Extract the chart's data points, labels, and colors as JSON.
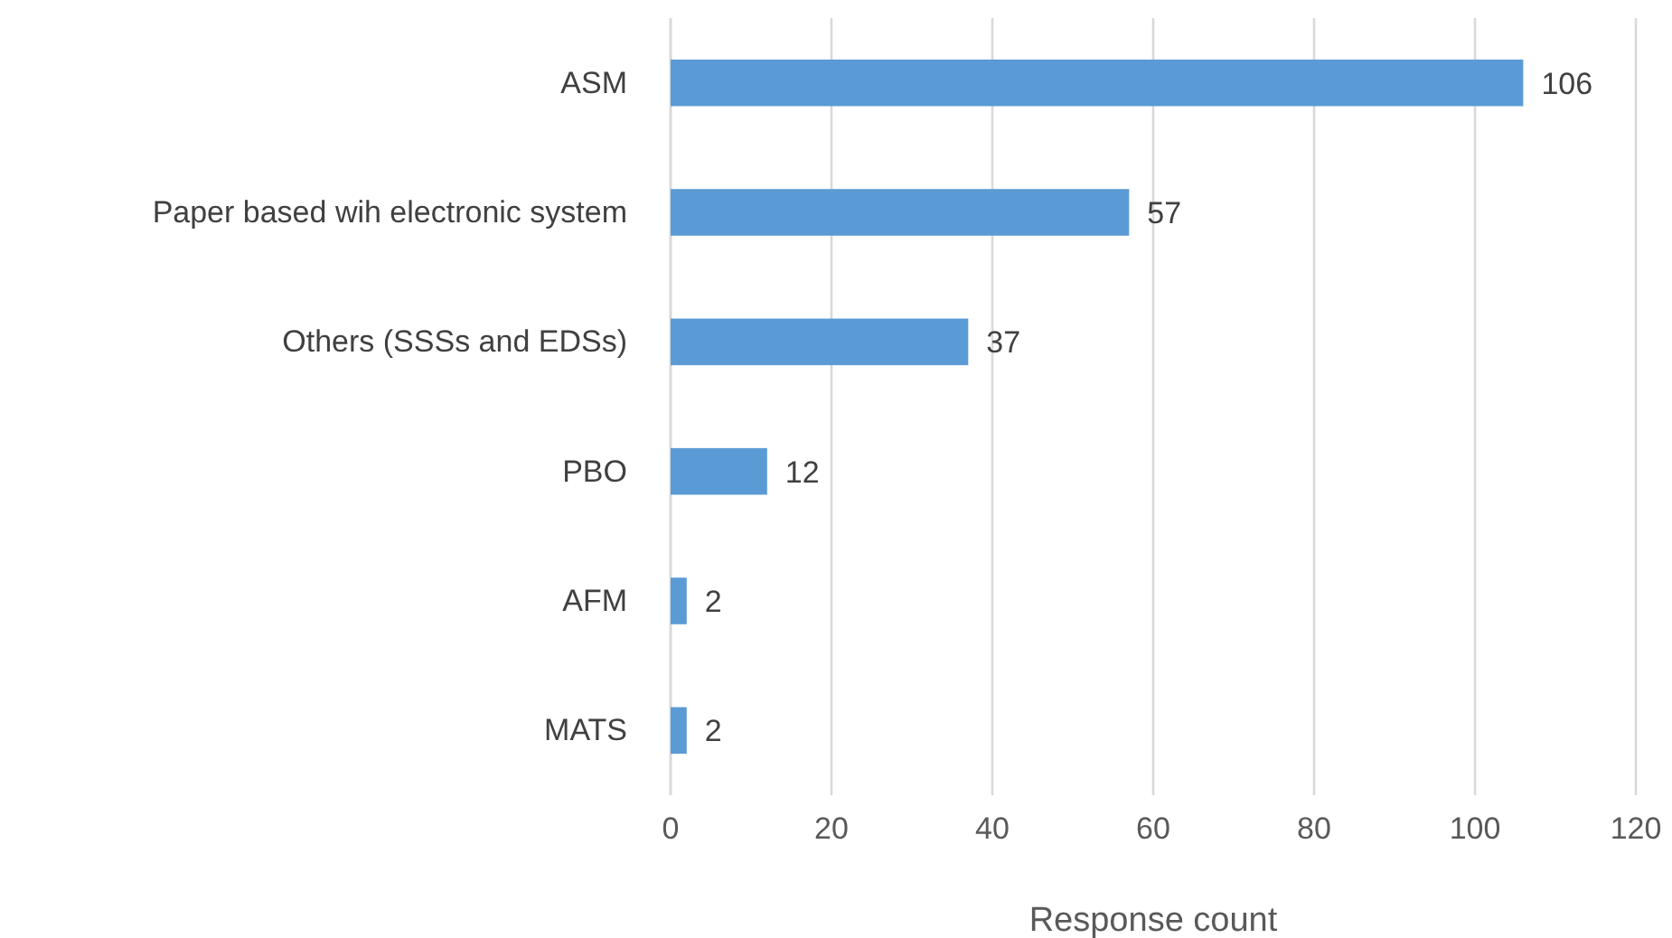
{
  "chart_data": {
    "type": "bar",
    "orientation": "horizontal",
    "categories": [
      "ASM",
      "Paper based wih electronic system",
      "Others (SSSs and EDSs)",
      "PBO",
      "AFM",
      "MATS"
    ],
    "values": [
      106,
      57,
      37,
      12,
      2,
      2
    ],
    "color": "#5b9bd5",
    "xlabel": "Response count",
    "xlim": [
      0,
      120
    ],
    "xticks": [
      0,
      20,
      40,
      60,
      80,
      100,
      120
    ],
    "grid": "x",
    "data_labels": true
  }
}
